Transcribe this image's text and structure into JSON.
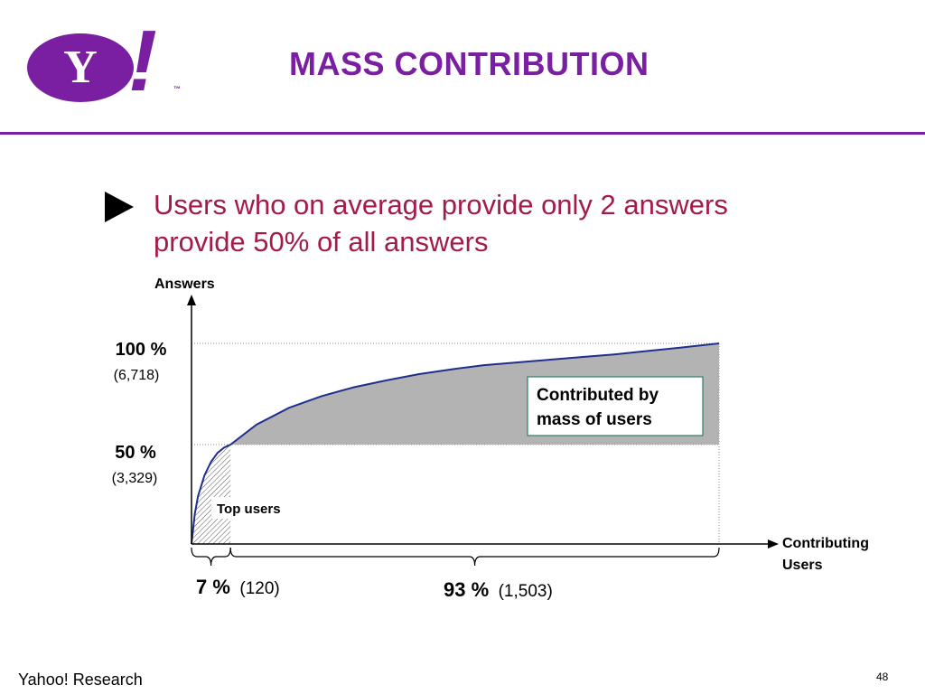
{
  "header": {
    "logo_text": "Y",
    "logo_mark": "!",
    "logo_tm": "™",
    "title": "MASS CONTRIBUTION"
  },
  "bullet": {
    "line1": "Users who on average provide only 2 answers",
    "line2": "provide 50% of all answers"
  },
  "chart_data": {
    "type": "area",
    "ylabel": "Answers",
    "xlabel_line1": "Contributing",
    "xlabel_line2": "Users",
    "y_ticks": [
      {
        "pct": "100 %",
        "count": "(6,718)",
        "value": 6718
      },
      {
        "pct": "50 %",
        "count": "(3,329)",
        "value": 3329
      }
    ],
    "x_total": 1623,
    "x_split": 120,
    "curve": {
      "x": [
        0,
        10,
        20,
        40,
        60,
        80,
        100,
        120,
        200,
        300,
        400,
        500,
        600,
        700,
        800,
        900,
        1000,
        1100,
        1200,
        1300,
        1400,
        1500,
        1623
      ],
      "y": [
        0,
        1000,
        1600,
        2300,
        2750,
        3050,
        3230,
        3329,
        4000,
        4560,
        4950,
        5250,
        5480,
        5690,
        5850,
        5990,
        6080,
        6170,
        6260,
        6350,
        6460,
        6570,
        6718
      ]
    },
    "regions": {
      "top": {
        "label": "Top users",
        "share_label": "7 %",
        "count_label": "(120)"
      },
      "mass": {
        "label_line1": "Contributed by",
        "label_line2": "mass of users",
        "share_label": "93 %",
        "count_label": "(1,503)"
      }
    },
    "colors": {
      "curve": "#1f2f8c",
      "mass_fill": "#b3b3b3",
      "axis": "#000000"
    }
  },
  "footer": {
    "left": "Yahoo! Research",
    "page": "48"
  }
}
